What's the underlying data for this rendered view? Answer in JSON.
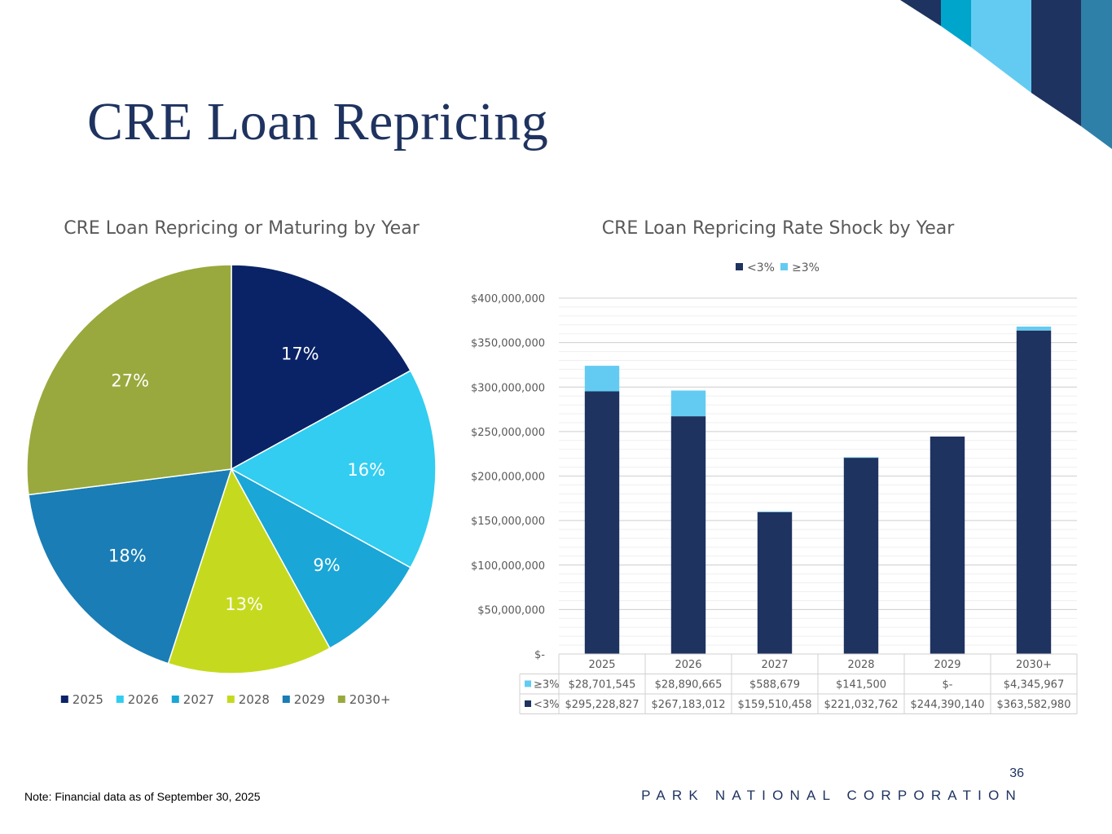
{
  "slide": {
    "title": "CRE Loan Repricing",
    "page_number": "36",
    "company": "PARK NATIONAL CORPORATION",
    "footnote": "Note: Financial data as of September 30, 2025"
  },
  "colors": {
    "navy": "#1f3360",
    "corner_cyan": "#00a5cc",
    "corner_light": "#63cbf2",
    "corner_teal": "#2f80a8"
  },
  "chart_data": [
    {
      "type": "pie",
      "title": "CRE Loan Repricing or Maturing by Year",
      "categories": [
        "2025",
        "2026",
        "2027",
        "2028",
        "2029",
        "2030+"
      ],
      "values": [
        17,
        16,
        9,
        13,
        18,
        27
      ],
      "labels": [
        "17%",
        "16%",
        "9%",
        "13%",
        "18%",
        "27%"
      ],
      "colors": [
        "#0a2366",
        "#32cdf1",
        "#1aa6d6",
        "#c5da1e",
        "#1a7db5",
        "#9aa93d"
      ],
      "label_colors": [
        "#ffffff",
        "#ffffff",
        "#ffffff",
        "#ffffff",
        "#ffffff",
        "#ffffff"
      ],
      "legend": "bottom"
    },
    {
      "type": "bar",
      "stacked": true,
      "title": "CRE Loan Repricing Rate Shock by Year",
      "categories": [
        "2025",
        "2026",
        "2027",
        "2028",
        "2029",
        "2030+"
      ],
      "series": [
        {
          "name": "<3%",
          "color": "#1f3360",
          "values": [
            295228827,
            267183012,
            159510458,
            221032762,
            244390140,
            363582980
          ],
          "table_values": [
            "$295,228,827",
            "$267,183,012",
            "$159,510,458",
            "$221,032,762",
            "$244,390,140",
            "$363,582,980"
          ]
        },
        {
          "name": "≥3%",
          "color": "#63cbf2",
          "values": [
            28701545,
            28890665,
            588679,
            141500,
            0,
            4345967
          ],
          "table_values": [
            "$28,701,545",
            "$28,890,665",
            "$588,679",
            "$141,500",
            "$-",
            "$4,345,967"
          ]
        }
      ],
      "yticks": [
        "$-",
        "$50,000,000",
        "$100,000,000",
        "$150,000,000",
        "$200,000,000",
        "$250,000,000",
        "$300,000,000",
        "$350,000,000",
        "$400,000,000"
      ],
      "ylim": [
        0,
        400000000
      ],
      "grid": true,
      "legend": "top",
      "data_table": true
    }
  ]
}
